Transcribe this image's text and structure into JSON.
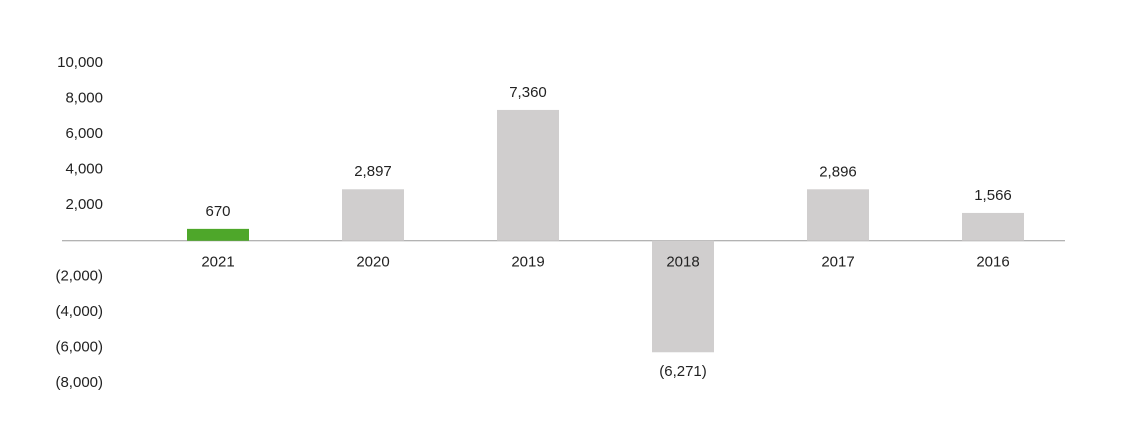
{
  "chart_data": {
    "type": "bar",
    "categories": [
      "2021",
      "2020",
      "2019",
      "2018",
      "2017",
      "2016"
    ],
    "values": [
      670,
      2897,
      7360,
      -6271,
      2896,
      1566
    ],
    "value_labels": [
      "670",
      "2,897",
      "7,360",
      "(6,271)",
      "2,896",
      "1,566"
    ],
    "colors": [
      "#4ea72a",
      "#d0cece",
      "#d0cece",
      "#d0cece",
      "#d0cece",
      "#d0cece"
    ],
    "ylim": [
      -8000,
      10000
    ],
    "yticks": [
      {
        "value": 10000,
        "label": "10,000"
      },
      {
        "value": 8000,
        "label": "8,000"
      },
      {
        "value": 6000,
        "label": "6,000"
      },
      {
        "value": 4000,
        "label": "4,000"
      },
      {
        "value": 2000,
        "label": "2,000"
      },
      {
        "value": -2000,
        "label": "(2,000)"
      },
      {
        "value": -4000,
        "label": "(4,000)"
      },
      {
        "value": -6000,
        "label": "(6,000)"
      },
      {
        "value": -8000,
        "label": "(8,000)"
      }
    ],
    "grid": false
  }
}
